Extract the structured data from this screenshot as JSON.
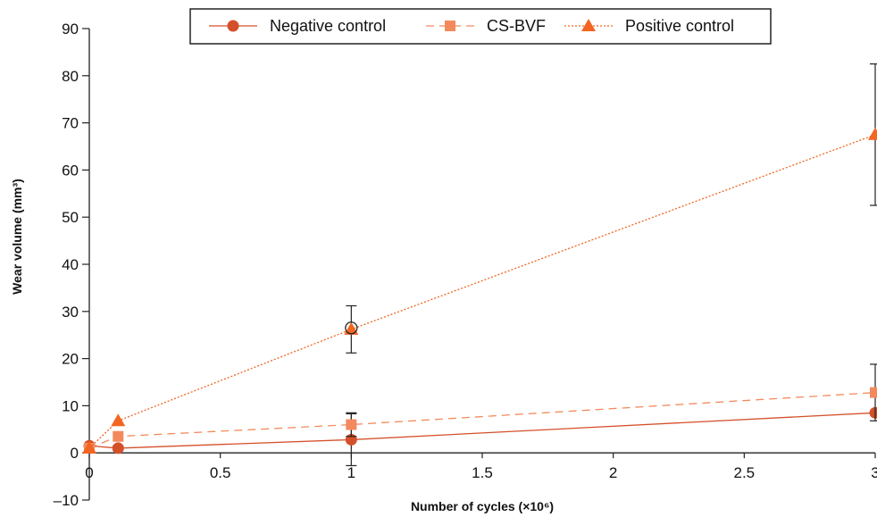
{
  "chart_data": {
    "type": "line",
    "xlabel": "Number of cycles (×10⁶)",
    "ylabel": "Wear volume (mm³)",
    "xlim": [
      0,
      3
    ],
    "ylim": [
      -10,
      90
    ],
    "x_ticks": [
      "0",
      "0.5",
      "1",
      "1.5",
      "2",
      "2.5",
      "3"
    ],
    "y_ticks": [
      "–10",
      "0",
      "10",
      "20",
      "30",
      "40",
      "50",
      "60",
      "70",
      "80",
      "90"
    ],
    "grid": false,
    "legend_position": "top",
    "series": [
      {
        "name": "Negative control",
        "color": "#d4502a",
        "line_style": "solid",
        "marker": "circle",
        "x": [
          0,
          0.11,
          1,
          3
        ],
        "y": [
          1.5,
          1.0,
          2.8,
          8.5
        ],
        "error": [
          0,
          0.5,
          5.5,
          0
        ]
      },
      {
        "name": "CS-BVF",
        "color": "#f28a5e",
        "line_style": "dashed",
        "marker": "square",
        "x": [
          0,
          0.11,
          1,
          3
        ],
        "y": [
          1.0,
          3.5,
          6.0,
          12.8
        ],
        "error": [
          0,
          0,
          2.5,
          6.0
        ]
      },
      {
        "name": "Positive control",
        "color": "#f26522",
        "line_style": "dotted",
        "marker": "triangle",
        "x": [
          0,
          0.11,
          1,
          3
        ],
        "y": [
          1.0,
          6.8,
          26.2,
          67.5
        ],
        "error": [
          0,
          0,
          5.0,
          15.0
        ]
      }
    ],
    "extra_markers": [
      {
        "marker": "open-circle",
        "x": 1,
        "y": 26.5
      }
    ]
  }
}
